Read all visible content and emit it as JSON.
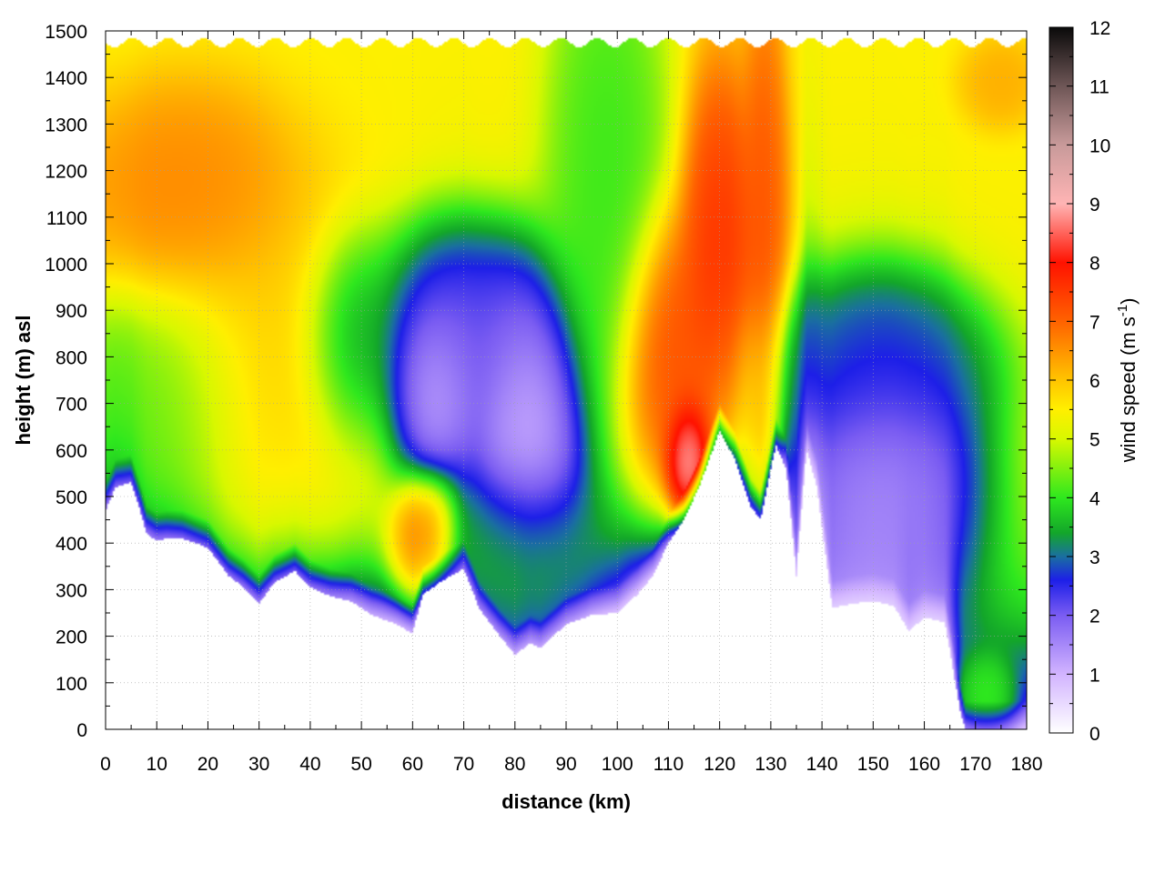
{
  "chart_data": {
    "type": "heatmap",
    "xlabel": "distance (km)",
    "ylabel": "height (m) asl",
    "xlim": [
      0,
      180
    ],
    "ylim": [
      0,
      1500
    ],
    "x_ticks": [
      0,
      10,
      20,
      30,
      40,
      50,
      60,
      70,
      80,
      90,
      100,
      110,
      120,
      130,
      140,
      150,
      160,
      170,
      180
    ],
    "y_ticks": [
      0,
      100,
      200,
      300,
      400,
      500,
      600,
      700,
      800,
      900,
      1000,
      1100,
      1200,
      1300,
      1400,
      1500
    ],
    "grid": true,
    "colorbar": {
      "label_main": "wind speed (m s",
      "label_sup": "-1",
      "label_end": ")",
      "range": [
        0,
        12
      ],
      "ticks": [
        0,
        1,
        2,
        3,
        4,
        5,
        6,
        7,
        8,
        9,
        10,
        11,
        12
      ],
      "stops": [
        {
          "value": 0,
          "color": "#ffffff"
        },
        {
          "value": 1,
          "color": "#d2b4ff"
        },
        {
          "value": 2,
          "color": "#7a5cf2"
        },
        {
          "value": 2.6,
          "color": "#1d1fe8"
        },
        {
          "value": 3,
          "color": "#1a6fa0"
        },
        {
          "value": 3.4,
          "color": "#13a62a"
        },
        {
          "value": 4,
          "color": "#2ee81e"
        },
        {
          "value": 5,
          "color": "#d8f800"
        },
        {
          "value": 5.5,
          "color": "#ffef00"
        },
        {
          "value": 6,
          "color": "#ffc400"
        },
        {
          "value": 7,
          "color": "#ff6200"
        },
        {
          "value": 8,
          "color": "#ff1200"
        },
        {
          "value": 9,
          "color": "#ffb4b4"
        },
        {
          "value": 10,
          "color": "#c89a9a"
        },
        {
          "value": 11,
          "color": "#6e5656"
        },
        {
          "value": 12,
          "color": "#0a0a0a"
        }
      ]
    },
    "terrain_profile": [
      [
        0,
        470
      ],
      [
        2,
        520
      ],
      [
        5,
        530
      ],
      [
        7,
        460
      ],
      [
        8,
        420
      ],
      [
        10,
        405
      ],
      [
        12,
        410
      ],
      [
        15,
        410
      ],
      [
        20,
        390
      ],
      [
        24,
        330
      ],
      [
        27,
        305
      ],
      [
        30,
        270
      ],
      [
        33,
        315
      ],
      [
        37,
        340
      ],
      [
        40,
        305
      ],
      [
        44,
        285
      ],
      [
        48,
        275
      ],
      [
        52,
        245
      ],
      [
        57,
        225
      ],
      [
        60,
        205
      ],
      [
        62,
        290
      ],
      [
        66,
        320
      ],
      [
        70,
        345
      ],
      [
        73,
        260
      ],
      [
        77,
        200
      ],
      [
        80,
        160
      ],
      [
        83,
        185
      ],
      [
        85,
        175
      ],
      [
        88,
        205
      ],
      [
        90,
        225
      ],
      [
        95,
        245
      ],
      [
        100,
        250
      ],
      [
        104,
        290
      ],
      [
        107,
        330
      ],
      [
        110,
        400
      ],
      [
        113,
        450
      ],
      [
        116,
        520
      ],
      [
        120,
        640
      ],
      [
        123,
        580
      ],
      [
        126,
        480
      ],
      [
        128,
        450
      ],
      [
        131,
        610
      ],
      [
        133,
        560
      ],
      [
        135,
        330
      ],
      [
        137,
        600
      ],
      [
        139,
        520
      ],
      [
        142,
        260
      ],
      [
        146,
        270
      ],
      [
        150,
        275
      ],
      [
        154,
        265
      ],
      [
        157,
        210
      ],
      [
        160,
        240
      ],
      [
        164,
        230
      ],
      [
        167,
        40
      ],
      [
        168,
        0
      ],
      [
        180,
        0
      ]
    ],
    "wind_features": [
      {
        "x": 15,
        "z": 1140,
        "speed": 6.8,
        "sx": 12,
        "sz": 130
      },
      {
        "x": 10,
        "z": 700,
        "speed": 4.2,
        "sx": 10,
        "sz": 140
      },
      {
        "x": 35,
        "z": 750,
        "speed": 6.0,
        "sx": 14,
        "sz": 220
      },
      {
        "x": 62,
        "z": 420,
        "speed": 7.2,
        "sx": 3.5,
        "sz": 70
      },
      {
        "x": 63,
        "z": 730,
        "speed": 0.3,
        "sx": 5,
        "sz": 110
      },
      {
        "x": 82,
        "z": 640,
        "speed": 0.6,
        "sx": 6,
        "sz": 170
      },
      {
        "x": 68,
        "z": 860,
        "speed": 1.8,
        "sx": 10,
        "sz": 120
      },
      {
        "x": 48,
        "z": 820,
        "speed": 2.5,
        "sx": 5,
        "sz": 120
      },
      {
        "x": 80,
        "z": 380,
        "speed": 3.8,
        "sx": 8,
        "sz": 100
      },
      {
        "x": 98,
        "z": 1200,
        "speed": 3.9,
        "sx": 6,
        "sz": 280
      },
      {
        "x": 110,
        "z": 800,
        "speed": 7.6,
        "sx": 5,
        "sz": 160
      },
      {
        "x": 114,
        "z": 580,
        "speed": 10.0,
        "sx": 2.5,
        "sz": 70
      },
      {
        "x": 120,
        "z": 960,
        "speed": 8.0,
        "sx": 4,
        "sz": 240
      },
      {
        "x": 129,
        "z": 1000,
        "speed": 7.4,
        "sx": 2.5,
        "sz": 300
      },
      {
        "x": 152,
        "z": 560,
        "speed": 1.2,
        "sx": 10,
        "sz": 180
      },
      {
        "x": 150,
        "z": 780,
        "speed": 2.8,
        "sx": 12,
        "sz": 100
      },
      {
        "x": 175,
        "z": 1390,
        "speed": 6.3,
        "sx": 4,
        "sz": 50
      },
      {
        "x": 172,
        "z": 60,
        "speed": 4.3,
        "sx": 3,
        "sz": 50
      }
    ]
  }
}
